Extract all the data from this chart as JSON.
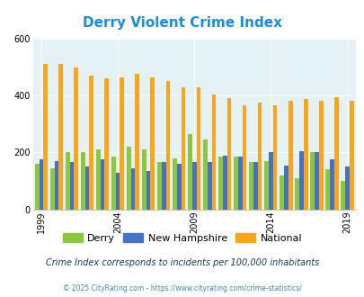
{
  "title": "Derry Violent Crime Index",
  "years": [
    1999,
    2000,
    2001,
    2002,
    2003,
    2004,
    2005,
    2006,
    2007,
    2008,
    2009,
    2010,
    2011,
    2012,
    2013,
    2014,
    2015,
    2016,
    2017,
    2018,
    2019
  ],
  "derry": [
    160,
    145,
    200,
    200,
    210,
    185,
    220,
    210,
    165,
    180,
    265,
    245,
    185,
    185,
    165,
    170,
    120,
    110,
    200,
    140,
    100
  ],
  "nh": [
    175,
    170,
    165,
    150,
    175,
    130,
    145,
    135,
    165,
    160,
    165,
    165,
    190,
    185,
    165,
    200,
    155,
    205,
    200,
    175,
    150
  ],
  "national": [
    510,
    510,
    500,
    470,
    460,
    465,
    475,
    465,
    450,
    430,
    430,
    405,
    390,
    365,
    375,
    365,
    383,
    387,
    383,
    395,
    380
  ],
  "bar_width": 0.28,
  "ylim": [
    0,
    600
  ],
  "yticks": [
    0,
    200,
    400,
    600
  ],
  "color_derry": "#8dc63f",
  "color_nh": "#4472c4",
  "color_national": "#faa51a",
  "plot_bg": "#e4f2f5",
  "grid_color": "#ffffff",
  "subtitle": "Crime Index corresponds to incidents per 100,000 inhabitants",
  "footer": "© 2025 CityRating.com - https://www.cityrating.com/crime-statistics/",
  "xlabel_years": [
    1999,
    2004,
    2009,
    2014,
    2019
  ],
  "title_color": "#1b8dd8",
  "subtitle_color": "#1a3a5c",
  "footer_color": "#4488aa",
  "legend_labels": [
    "Derry",
    "New Hampshire",
    "National"
  ]
}
